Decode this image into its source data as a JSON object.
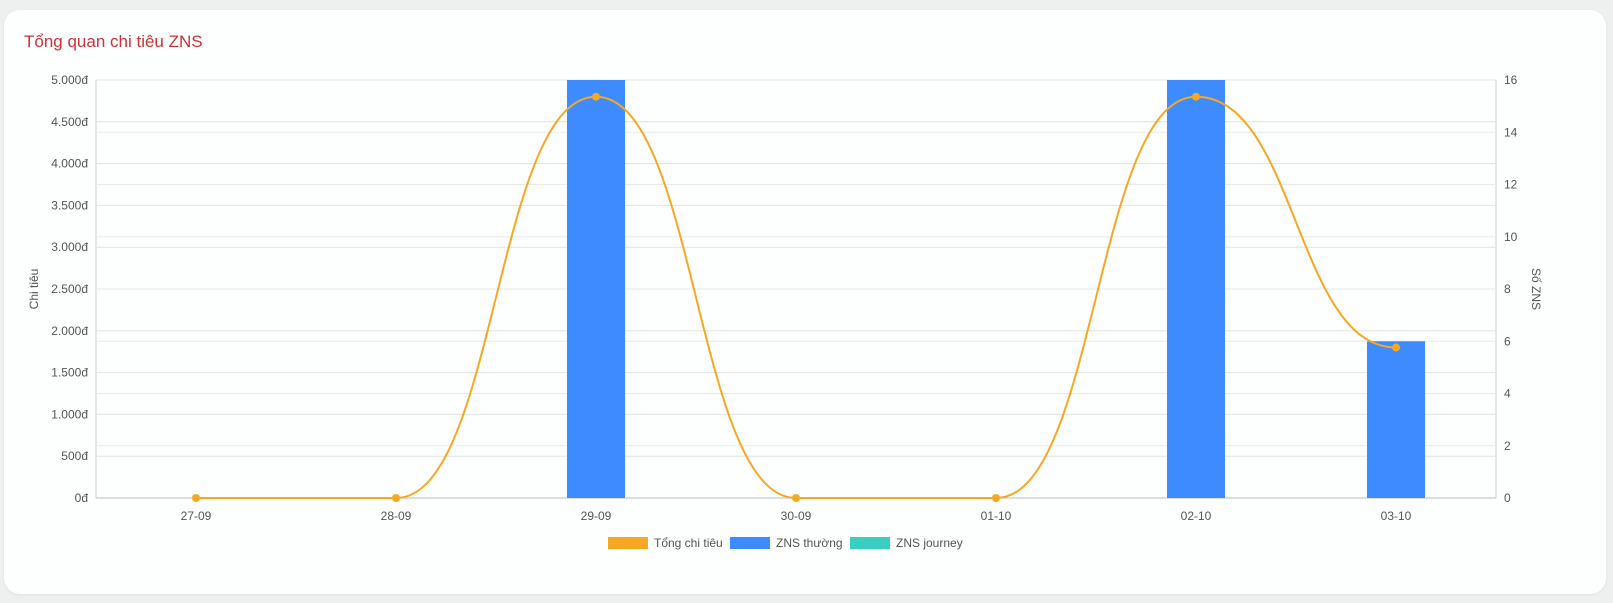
{
  "card": {
    "title": "Tổng quan chi tiêu ZNS"
  },
  "chart_data": {
    "type": "bar",
    "categories": [
      "27-09",
      "28-09",
      "29-09",
      "30-09",
      "01-10",
      "02-10",
      "03-10"
    ],
    "series": [
      {
        "name": "Tổng chi tiêu",
        "type": "line",
        "axis": "left",
        "color": "#f7a823",
        "values": [
          0,
          0,
          4800,
          0,
          0,
          4800,
          1800
        ]
      },
      {
        "name": "ZNS thường",
        "type": "bar",
        "axis": "right",
        "color": "#3d8bff",
        "values": [
          0,
          0,
          16,
          0,
          0,
          16,
          6
        ]
      },
      {
        "name": "ZNS journey",
        "type": "bar",
        "axis": "right",
        "color": "#39cfc0",
        "values": [
          0,
          0,
          0,
          0,
          0,
          0,
          0
        ]
      }
    ],
    "ylabel": "Chi tiêu",
    "y2label": "Số ZNS",
    "ylim": [
      0,
      5000
    ],
    "yticks": [
      0,
      500,
      1000,
      1500,
      2000,
      2500,
      3000,
      3500,
      4000,
      4500,
      5000
    ],
    "ytick_labels": [
      "0đ",
      "500đ",
      "1.000đ",
      "1.500đ",
      "2.000đ",
      "2.500đ",
      "3.000đ",
      "3.500đ",
      "4.000đ",
      "4.500đ",
      "5.000đ"
    ],
    "y2lim": [
      0,
      16
    ],
    "y2ticks": [
      0,
      2,
      4,
      6,
      8,
      10,
      12,
      14,
      16
    ],
    "y2tick_labels": [
      "0",
      "2",
      "4",
      "6",
      "8",
      "10",
      "12",
      "14",
      "16"
    ],
    "grid": true,
    "legend_position": "bottom"
  }
}
